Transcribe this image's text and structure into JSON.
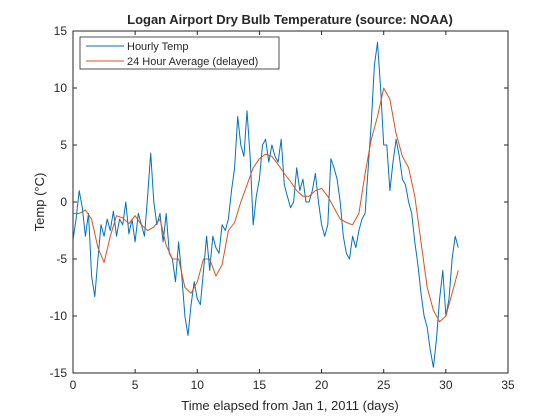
{
  "chart_data": {
    "type": "line",
    "title": "Logan Airport Dry Bulb Temperature (source: NOAA)",
    "xlabel": "Time elapsed from Jan 1, 2011 (days)",
    "ylabel": "Temp (°C)",
    "xlim": [
      0,
      35
    ],
    "ylim": [
      -15,
      15
    ],
    "xticks": [
      0,
      5,
      10,
      15,
      20,
      25,
      30,
      35
    ],
    "yticks": [
      -15,
      -10,
      -5,
      0,
      5,
      10,
      15
    ],
    "xtick_labels": [
      "0",
      "5",
      "10",
      "15",
      "20",
      "25",
      "30",
      "35"
    ],
    "ytick_labels": [
      "-15",
      "-10",
      "-5",
      "0",
      "5",
      "10",
      "15"
    ],
    "grid": false,
    "legend_position": "top-left",
    "series": [
      {
        "name": "Hourly Temp",
        "color": "#0072BD",
        "x": [
          0,
          0.25,
          0.5,
          0.75,
          1,
          1.25,
          1.5,
          1.75,
          2,
          2.25,
          2.5,
          2.75,
          3,
          3.25,
          3.5,
          3.75,
          4,
          4.25,
          4.5,
          4.75,
          5,
          5.25,
          5.5,
          5.75,
          6,
          6.25,
          6.5,
          6.75,
          7,
          7.25,
          7.5,
          7.75,
          8,
          8.25,
          8.5,
          8.75,
          9,
          9.25,
          9.5,
          9.75,
          10,
          10.25,
          10.5,
          10.75,
          11,
          11.25,
          11.5,
          11.75,
          12,
          12.25,
          12.5,
          12.75,
          13,
          13.25,
          13.5,
          13.75,
          14,
          14.25,
          14.5,
          14.75,
          15,
          15.25,
          15.5,
          15.75,
          16,
          16.25,
          16.5,
          16.75,
          17,
          17.25,
          17.5,
          17.75,
          18,
          18.25,
          18.5,
          18.75,
          19,
          19.25,
          19.5,
          19.75,
          20,
          20.25,
          20.5,
          20.75,
          21,
          21.25,
          21.5,
          21.75,
          22,
          22.25,
          22.5,
          22.75,
          23,
          23.25,
          23.5,
          23.75,
          24,
          24.25,
          24.5,
          24.75,
          25,
          25.25,
          25.5,
          25.75,
          26,
          26.25,
          26.5,
          26.75,
          27,
          27.25,
          27.5,
          27.75,
          28,
          28.25,
          28.5,
          28.75,
          29,
          29.25,
          29.5,
          29.75,
          30,
          30.25,
          30.5,
          30.75,
          31
        ],
        "values": [
          -3.3,
          -1.5,
          1.0,
          -0.5,
          -3.0,
          -1.0,
          -6.5,
          -8.3,
          -5.0,
          -2.0,
          -3.0,
          -1.5,
          -2.5,
          -0.8,
          -3.0,
          -1.5,
          -2.0,
          0.0,
          -2.8,
          -1.5,
          -3.5,
          -1.0,
          -2.0,
          -3.0,
          0.5,
          4.3,
          0.0,
          -2.0,
          -1.0,
          -3.5,
          -1.0,
          -4.5,
          -5.0,
          -7.0,
          -3.5,
          -6.5,
          -10.0,
          -11.7,
          -9.0,
          -7.0,
          -8.5,
          -9.0,
          -6.0,
          -3.0,
          -6.0,
          -3.0,
          -4.0,
          -4.5,
          -2.0,
          -2.5,
          -1.5,
          1.0,
          3.0,
          7.5,
          5.0,
          4.0,
          8.0,
          4.0,
          -2.0,
          0.5,
          2.0,
          5.0,
          5.5,
          3.5,
          5.0,
          4.0,
          3.5,
          5.5,
          1.5,
          0.5,
          -0.5,
          0.0,
          3.0,
          1.0,
          2.0,
          0.0,
          0.0,
          1.0,
          2.5,
          0.0,
          -2.0,
          -3.0,
          -2.0,
          3.8,
          3.0,
          2.0,
          0.0,
          -3.0,
          -4.5,
          -5.0,
          -3.0,
          -4.0,
          -2.5,
          -1.5,
          -1.0,
          3.0,
          7.0,
          12.0,
          14.0,
          10.0,
          5.0,
          5.0,
          1.0,
          3.5,
          5.5,
          4.0,
          2.0,
          1.5,
          0.0,
          -1.0,
          -3.5,
          -5.5,
          -8.0,
          -10.0,
          -11.0,
          -13.0,
          -14.5,
          -12.0,
          -8.5,
          -6.0,
          -10.0,
          -8.5,
          -5.0,
          -3.0,
          -4.0
        ]
      },
      {
        "name": "24 Hour Average (delayed)",
        "color": "#D95319",
        "x": [
          0,
          0.5,
          1,
          1.5,
          2,
          2.5,
          3,
          3.5,
          4,
          4.5,
          5,
          5.5,
          6,
          6.5,
          7,
          7.5,
          8,
          8.5,
          9,
          9.5,
          10,
          10.5,
          11,
          11.5,
          12,
          12.5,
          13,
          13.5,
          14,
          14.5,
          15,
          15.5,
          16,
          16.5,
          17,
          17.5,
          18,
          18.5,
          19,
          19.5,
          20,
          20.5,
          21,
          21.5,
          22,
          22.5,
          23,
          23.5,
          24,
          24.5,
          25,
          25.5,
          26,
          26.5,
          27,
          27.5,
          28,
          28.5,
          29,
          29.5,
          30,
          30.5,
          31
        ],
        "values": [
          -1.0,
          -1.0,
          -0.7,
          -1.5,
          -4.0,
          -5.3,
          -3.0,
          -1.2,
          -1.4,
          -1.9,
          -1.2,
          -2.0,
          -2.5,
          -2.2,
          -1.5,
          -3.8,
          -5.0,
          -5.0,
          -7.5,
          -8.0,
          -7.0,
          -5.0,
          -5.0,
          -6.5,
          -5.5,
          -2.5,
          -1.8,
          0.0,
          1.5,
          3.0,
          3.8,
          4.2,
          4.0,
          3.3,
          2.5,
          1.8,
          1.0,
          0.5,
          0.5,
          1.0,
          1.2,
          0.5,
          -0.5,
          -1.5,
          -1.8,
          -2.0,
          -1.0,
          2.5,
          5.5,
          7.5,
          10.0,
          9.0,
          6.0,
          4.0,
          3.0,
          0.5,
          -3.5,
          -7.5,
          -9.5,
          -10.5,
          -10.0,
          -8.0,
          -6.0
        ]
      }
    ]
  }
}
